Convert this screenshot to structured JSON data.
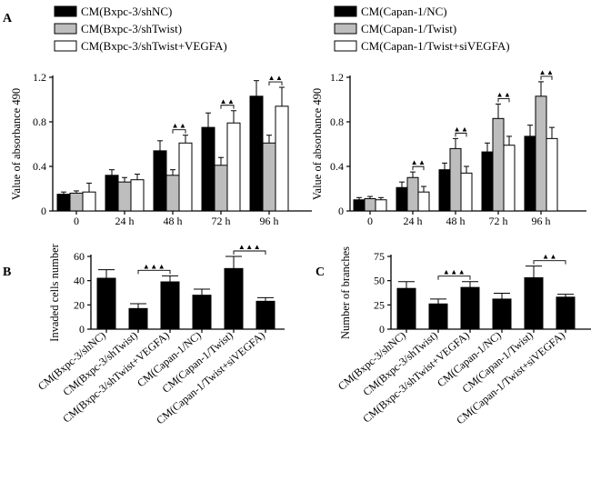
{
  "colors": {
    "black": "#000000",
    "gray": "#bdbdbd",
    "white": "#ffffff"
  },
  "chart_data": [
    {
      "panel": "A",
      "type": "bar",
      "ylabel": "Value of absorbance  490",
      "ylim": [
        0,
        1.2
      ],
      "yticks": [
        "0",
        "0.4",
        "0.8",
        "1.2"
      ],
      "yticks_values": [
        0,
        0.4,
        0.8,
        1.2
      ],
      "categories": [
        "0",
        "24 h",
        "48 h",
        "72 h",
        "96 h"
      ],
      "series": [
        {
          "name": "CM(Bxpc-3/shNC)",
          "color": "black",
          "values": [
            0.15,
            0.32,
            0.54,
            0.75,
            1.03
          ],
          "errors": [
            0.02,
            0.05,
            0.09,
            0.13,
            0.14
          ]
        },
        {
          "name": "CM(Bxpc-3/shTwist)",
          "color": "gray",
          "values": [
            0.16,
            0.26,
            0.32,
            0.41,
            0.61
          ],
          "errors": [
            0.02,
            0.04,
            0.05,
            0.07,
            0.07
          ]
        },
        {
          "name": "CM(Bxpc-3/shTwist+VEGFA)",
          "color": "white",
          "values": [
            0.17,
            0.28,
            0.61,
            0.79,
            0.94
          ],
          "errors": [
            0.08,
            0.05,
            0.07,
            0.11,
            0.17
          ]
        }
      ],
      "significance": [
        {
          "category_index": 2,
          "between": [
            1,
            2
          ],
          "mark": "▲▲"
        },
        {
          "category_index": 3,
          "between": [
            1,
            2
          ],
          "mark": "▲▲"
        },
        {
          "category_index": 4,
          "between": [
            1,
            2
          ],
          "mark": "▲▲"
        }
      ]
    },
    {
      "panel": "",
      "type": "bar",
      "ylabel": "Value of absorbance  490",
      "ylim": [
        0,
        1.2
      ],
      "yticks": [
        "0",
        "0.4",
        "0.8",
        "1.2"
      ],
      "yticks_values": [
        0,
        0.4,
        0.8,
        1.2
      ],
      "categories": [
        "0",
        "24 h",
        "48 h",
        "72 h",
        "96 h"
      ],
      "series": [
        {
          "name": "CM(Capan-1/NC)",
          "color": "black",
          "values": [
            0.1,
            0.21,
            0.37,
            0.53,
            0.67
          ],
          "errors": [
            0.02,
            0.05,
            0.06,
            0.08,
            0.1
          ]
        },
        {
          "name": "CM(Capan-1/Twist)",
          "color": "gray",
          "values": [
            0.11,
            0.3,
            0.56,
            0.83,
            1.03
          ],
          "errors": [
            0.02,
            0.05,
            0.09,
            0.13,
            0.13
          ]
        },
        {
          "name": "CM(Capan-1/Twist+siVEGFA)",
          "color": "white",
          "values": [
            0.1,
            0.17,
            0.34,
            0.59,
            0.65
          ],
          "errors": [
            0.02,
            0.05,
            0.06,
            0.08,
            0.1
          ]
        }
      ],
      "significance": [
        {
          "category_index": 1,
          "between": [
            1,
            2
          ],
          "mark": "▲▲"
        },
        {
          "category_index": 2,
          "between": [
            1,
            2
          ],
          "mark": "▲▲"
        },
        {
          "category_index": 3,
          "between": [
            1,
            2
          ],
          "mark": "▲▲"
        },
        {
          "category_index": 4,
          "between": [
            1,
            2
          ],
          "mark": "▲▲"
        }
      ]
    },
    {
      "panel": "B",
      "type": "bar",
      "ylabel": "Invaded cells number",
      "ylim": [
        0,
        60
      ],
      "yticks": [
        "0",
        "20",
        "40",
        "60"
      ],
      "yticks_values": [
        0,
        20,
        40,
        60
      ],
      "categories": [
        "CM(Bxpc-3/shNC)",
        "CM(Bxpc-3/shTwist)",
        "CM(Bxpc-3/shTwist+VEGFA)",
        "CM(Capan-1/NC)",
        "CM(Capan-1/Twist)",
        "CM(Capan-1/Twist+siVEGFA)"
      ],
      "values": [
        42,
        17,
        39,
        28,
        50,
        23
      ],
      "errors": [
        7,
        4,
        5,
        5,
        10,
        3
      ],
      "significance": [
        {
          "between": [
            1,
            2
          ],
          "mark": "▲▲▲"
        },
        {
          "between": [
            4,
            5
          ],
          "mark": "▲▲▲"
        }
      ]
    },
    {
      "panel": "C",
      "type": "bar",
      "ylabel": "Number of branches",
      "ylim": [
        0,
        75
      ],
      "yticks": [
        "0",
        "25",
        "50",
        "75"
      ],
      "yticks_values": [
        0,
        25,
        50,
        75
      ],
      "categories": [
        "CM(Bxpc-3/shNC)",
        "CM(Bxpc-3/shTwist)",
        "CM(Bxpc-3/shTwist+VEGFA)",
        "CM(Capan-1/NC)",
        "CM(Capan-1/Twist)",
        "CM(Capan-1/Twist+siVEGFA)"
      ],
      "values": [
        42,
        26,
        43,
        31,
        53,
        33
      ],
      "errors": [
        7,
        5,
        6,
        6,
        12,
        3
      ],
      "significance": [
        {
          "between": [
            1,
            2
          ],
          "mark": "▲▲▲"
        },
        {
          "between": [
            4,
            5
          ],
          "mark": "▲▲"
        }
      ]
    }
  ]
}
